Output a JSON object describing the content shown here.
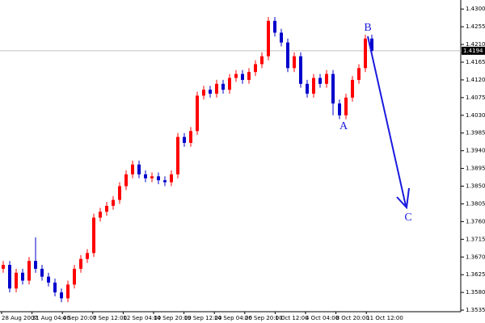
{
  "chart_data": {
    "type": "candlestick",
    "x_labels": [
      "28 Aug 2007",
      "31 Aug 04:00",
      "4 Sep 20:00",
      "7 Sep 12:00",
      "12 Sep 04:00",
      "14 Sep 20:00",
      "19 Sep 12:00",
      "24 Sep 04:00",
      "26 Sep 20:00",
      "1 Oct 12:00",
      "4 Oct 04:00",
      "8 Oct 20:00",
      "11 Oct 12:00"
    ],
    "open": [
      1.364,
      1.365,
      1.359,
      1.363,
      1.361,
      1.366,
      1.364,
      1.362,
      1.3605,
      1.358,
      1.3565,
      1.36,
      1.364,
      1.3665,
      1.368,
      1.377,
      1.3785,
      1.38,
      1.3815,
      1.385,
      1.388,
      1.3905,
      1.388,
      1.387,
      1.3875,
      1.3865,
      1.386,
      1.388,
      1.3975,
      1.396,
      1.399,
      1.408,
      1.4095,
      1.4085,
      1.411,
      1.4095,
      1.4125,
      1.4135,
      1.412,
      1.414,
      1.416,
      1.418,
      1.427,
      1.424,
      1.4215,
      1.415,
      1.418,
      1.411,
      1.4085,
      1.4125,
      1.411,
      1.4135,
      1.406,
      1.403,
      1.4075,
      1.412,
      1.415,
      1.4225
    ],
    "high": [
      1.366,
      1.366,
      1.364,
      1.364,
      1.367,
      1.372,
      1.365,
      1.363,
      1.3615,
      1.359,
      1.361,
      1.365,
      1.3675,
      1.369,
      1.378,
      1.3795,
      1.381,
      1.3825,
      1.386,
      1.389,
      1.3915,
      1.3915,
      1.389,
      1.3885,
      1.3885,
      1.3875,
      1.389,
      1.3985,
      1.3985,
      1.4,
      1.409,
      1.4105,
      1.4105,
      1.412,
      1.412,
      1.4135,
      1.4145,
      1.4145,
      1.415,
      1.417,
      1.419,
      1.428,
      1.428,
      1.425,
      1.4225,
      1.419,
      1.419,
      1.412,
      1.4135,
      1.4135,
      1.4145,
      1.4145,
      1.407,
      1.4085,
      1.413,
      1.416,
      1.4235,
      1.4235
    ],
    "low": [
      1.363,
      1.358,
      1.358,
      1.36,
      1.36,
      1.363,
      1.361,
      1.3595,
      1.357,
      1.3555,
      1.3555,
      1.359,
      1.363,
      1.3655,
      1.367,
      1.376,
      1.3775,
      1.379,
      1.3805,
      1.384,
      1.387,
      1.387,
      1.386,
      1.386,
      1.3855,
      1.385,
      1.385,
      1.387,
      1.395,
      1.395,
      1.398,
      1.407,
      1.4075,
      1.4075,
      1.4085,
      1.4085,
      1.4115,
      1.411,
      1.411,
      1.413,
      1.415,
      1.417,
      1.423,
      1.4205,
      1.414,
      1.414,
      1.41,
      1.4075,
      1.4075,
      1.41,
      1.41,
      1.403,
      1.402,
      1.402,
      1.4065,
      1.411,
      1.414,
      1.4185
    ],
    "close": [
      1.365,
      1.359,
      1.363,
      1.361,
      1.366,
      1.364,
      1.362,
      1.3605,
      1.358,
      1.3565,
      1.36,
      1.364,
      1.3665,
      1.368,
      1.377,
      1.3785,
      1.38,
      1.3815,
      1.385,
      1.388,
      1.3905,
      1.388,
      1.387,
      1.3875,
      1.3865,
      1.386,
      1.388,
      1.3975,
      1.396,
      1.399,
      1.408,
      1.4095,
      1.4085,
      1.411,
      1.4095,
      1.4125,
      1.4135,
      1.412,
      1.414,
      1.416,
      1.418,
      1.427,
      1.424,
      1.4215,
      1.415,
      1.418,
      1.411,
      1.4085,
      1.4125,
      1.411,
      1.4135,
      1.406,
      1.403,
      1.4075,
      1.412,
      1.415,
      1.4225,
      1.4194
    ],
    "up_color": "#ff0000",
    "down_color": "#0000cc",
    "ylim": [
      1.3531,
      1.4323
    ],
    "yticks": [
      1.3535,
      {
        "value": 1.358,
        "label": "1.3580"
      },
      1.3625,
      {
        "value": 1.367,
        "label": "1.3670"
      },
      1.3715,
      {
        "value": 1.376,
        "label": "1.3760"
      },
      1.3805,
      {
        "value": 1.385,
        "label": "1.3850"
      },
      1.3895,
      {
        "value": 1.394,
        "label": "1.3940"
      },
      1.3985,
      {
        "value": 1.403,
        "label": "1.4030"
      },
      1.4075,
      {
        "value": 1.412,
        "label": "1.4120"
      },
      1.4165,
      {
        "value": 1.421,
        "label": "1.4210"
      },
      1.4255,
      {
        "value": 1.43,
        "label": "1.4300"
      }
    ],
    "last_price": 1.4194,
    "annotations": [
      "A",
      "B",
      "C"
    ]
  }
}
